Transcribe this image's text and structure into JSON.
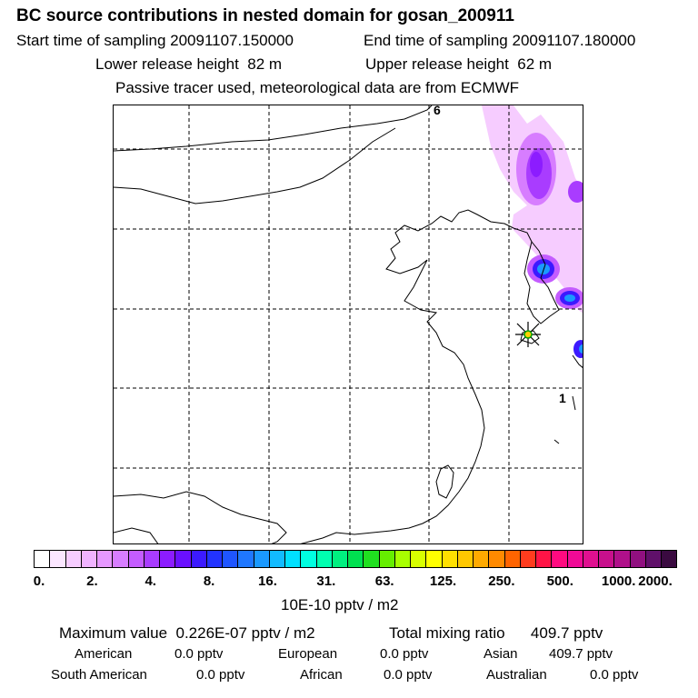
{
  "title": "BC  source contributions in nested domain for gosan_200911",
  "header": {
    "start_label": "Start time of sampling",
    "start_value": "20091107.150000",
    "end_label": "End time of sampling",
    "end_value": "20091107.180000",
    "lower_label": "Lower release height",
    "lower_value": "82 m",
    "upper_label": "Upper release height",
    "upper_value": "62 m",
    "note": "Passive tracer used, meteorological data are from ECMWF"
  },
  "map": {
    "labels": {
      "top_marker": "6",
      "right_marker": "1"
    }
  },
  "colorbar": {
    "colors": [
      "#ffffff",
      "#fbe6ff",
      "#f6ccff",
      "#f0b3ff",
      "#e698ff",
      "#d77dff",
      "#c45cff",
      "#a93cff",
      "#8c1cff",
      "#6a10ff",
      "#3c1aff",
      "#2233ff",
      "#1f55ff",
      "#1f77ff",
      "#1a99ff",
      "#12bbff",
      "#00e0ff",
      "#00ffe0",
      "#00ffb0",
      "#00f080",
      "#00e050",
      "#20e020",
      "#66ee00",
      "#a8ff00",
      "#d8ff00",
      "#ffff00",
      "#ffe000",
      "#ffc800",
      "#ffaa00",
      "#ff8a00",
      "#ff6400",
      "#ff3c1e",
      "#ff1446",
      "#ff0a80",
      "#f00a96",
      "#e01090",
      "#c8108c",
      "#b0108a",
      "#901080",
      "#60106a",
      "#3a0a40"
    ],
    "ticks": [
      "0.",
      "2.",
      "4.",
      "8.",
      "16.",
      "31.",
      "63.",
      "125.",
      "250.",
      "500.",
      "1000.",
      "2000."
    ],
    "units": "10E-10 pptv / m2"
  },
  "stats": {
    "max_label": "Maximum value",
    "max_value": "0.226E-07 pptv / m2",
    "total_label": "Total mixing ratio",
    "total_value": "409.7 pptv",
    "regions": [
      {
        "name": "American",
        "value": "0.0 pptv"
      },
      {
        "name": "European",
        "value": "0.0 pptv"
      },
      {
        "name": "Asian",
        "value": "409.7 pptv"
      },
      {
        "name": "South American",
        "value": "0.0 pptv"
      },
      {
        "name": "African",
        "value": "0.0 pptv"
      },
      {
        "name": "Australian",
        "value": "0.0 pptv"
      }
    ]
  }
}
